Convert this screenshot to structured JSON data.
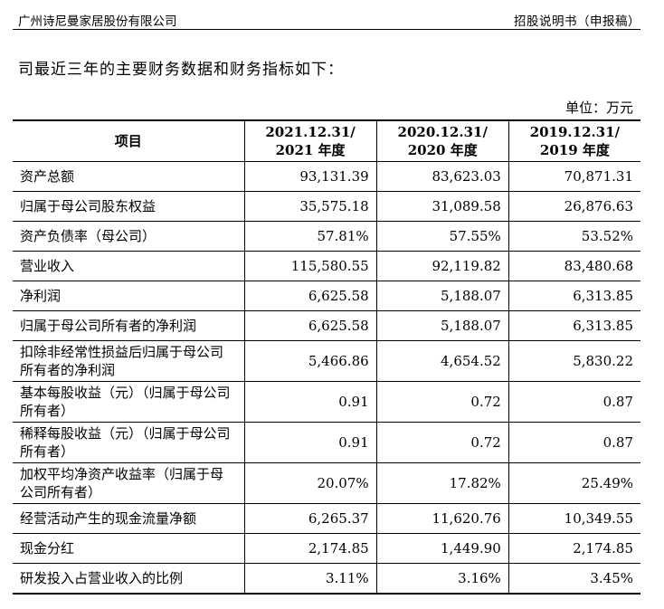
{
  "header": {
    "company": "广州诗尼曼家居股份有限公司",
    "doc_type": "招股说明书（申报稿）"
  },
  "intro": "司最近三年的主要财务数据和财务指标如下：",
  "unit": "单位：万元",
  "table": {
    "columns": [
      {
        "label": "项目"
      },
      {
        "line1": "2021.12.31/",
        "line2": "2021 年度"
      },
      {
        "line1": "2020.12.31/",
        "line2": "2020 年度"
      },
      {
        "line1": "2019.12.31/",
        "line2": "2019 年度"
      }
    ],
    "rows": [
      {
        "label": "资产总额",
        "v2021": "93,131.39",
        "v2020": "83,623.03",
        "v2019": "70,871.31"
      },
      {
        "label": "归属于母公司股东权益",
        "v2021": "35,575.18",
        "v2020": "31,089.58",
        "v2019": "26,876.63"
      },
      {
        "label": "资产负债率（母公司）",
        "v2021": "57.81%",
        "v2020": "57.55%",
        "v2019": "53.52%"
      },
      {
        "label": "营业收入",
        "v2021": "115,580.55",
        "v2020": "92,119.82",
        "v2019": "83,480.68"
      },
      {
        "label": "净利润",
        "v2021": "6,625.58",
        "v2020": "5,188.07",
        "v2019": "6,313.85"
      },
      {
        "label": "归属于母公司所有者的净利润",
        "v2021": "6,625.58",
        "v2020": "5,188.07",
        "v2019": "6,313.85"
      },
      {
        "label": "扣除非经常性损益后归属于母公司所有者的净利润",
        "v2021": "5,466.86",
        "v2020": "4,654.52",
        "v2019": "5,830.22"
      },
      {
        "label": "基本每股收益（元）（归属于母公司所有者）",
        "v2021": "0.91",
        "v2020": "0.72",
        "v2019": "0.87"
      },
      {
        "label": "稀释每股收益（元）（归属于母公司所有者）",
        "v2021": "0.91",
        "v2020": "0.72",
        "v2019": "0.87"
      },
      {
        "label": "加权平均净资产收益率（归属于母公司所有者）",
        "v2021": "20.07%",
        "v2020": "17.82%",
        "v2019": "25.49%"
      },
      {
        "label": "经营活动产生的现金流量净额",
        "v2021": "6,265.37",
        "v2020": "11,620.76",
        "v2019": "10,349.55"
      },
      {
        "label": "现金分红",
        "v2021": "2,174.85",
        "v2020": "1,449.90",
        "v2019": "2,174.85"
      },
      {
        "label": "研发投入占营业收入的比例",
        "v2021": "3.11%",
        "v2020": "3.16%",
        "v2019": "3.45%"
      }
    ]
  }
}
